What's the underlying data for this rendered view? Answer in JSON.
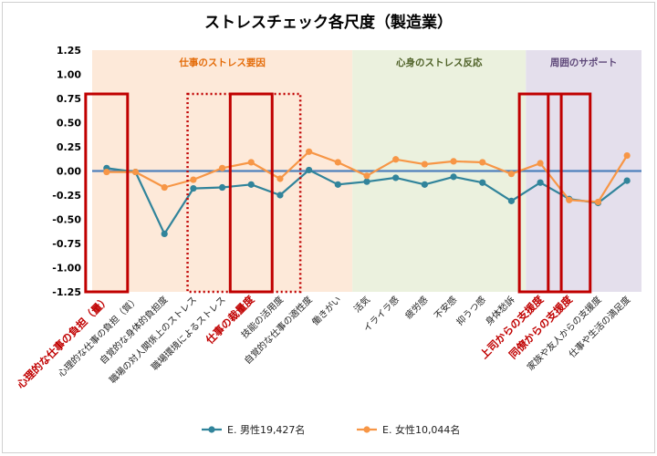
{
  "chart_data": {
    "type": "line",
    "title": "ストレスチェック各尺度（製造業）",
    "ylim": [
      -1.25,
      1.25
    ],
    "yticks": [
      "1.25",
      "1.00",
      "0.75",
      "0.50",
      "0.25",
      "0.00",
      "-0.25",
      "-0.50",
      "-0.75",
      "-1.00",
      "-1.25"
    ],
    "categories": [
      "心理的な仕事の負担（量）",
      "心理的な仕事の負担（質）",
      "自覚的な身体的負担度",
      "職場の対人関係上のストレス",
      "職場環境によるストレス",
      "仕事の裁量度",
      "技能の活用度",
      "自覚的な仕事の適性度",
      "働きがい",
      "活気",
      "イライラ感",
      "疲労感",
      "不安感",
      "抑うつ感",
      "身体愁訴",
      "上司からの支援度",
      "同僚からの支援度",
      "家族や友人からの支援度",
      "仕事や生活の満足度"
    ],
    "highlighted_categories": [
      0,
      5,
      15,
      16
    ],
    "sections": [
      {
        "label": "仕事のストレス要因",
        "from": 0,
        "to": 8,
        "color": "#fde9d9"
      },
      {
        "label": "心身のストレス反応",
        "from": 9,
        "to": 14,
        "color": "#ebf1de"
      },
      {
        "label": "周囲のサポート",
        "from": 15,
        "to": 18,
        "color": "#e4dfec"
      }
    ],
    "series": [
      {
        "name": "E. 男性19,427名",
        "color": "#31849b",
        "values": [
          0.03,
          -0.01,
          -0.65,
          -0.18,
          -0.17,
          -0.14,
          -0.25,
          0.01,
          -0.14,
          -0.11,
          -0.07,
          -0.14,
          -0.06,
          -0.12,
          -0.31,
          -0.12,
          -0.29,
          -0.33,
          -0.1
        ]
      },
      {
        "name": "E. 女性10,044名",
        "color": "#f79646",
        "values": [
          -0.01,
          -0.01,
          -0.17,
          -0.09,
          0.03,
          0.09,
          -0.08,
          0.2,
          0.09,
          -0.05,
          0.12,
          0.07,
          0.1,
          0.09,
          -0.03,
          0.08,
          -0.3,
          -0.32,
          0.16
        ]
      }
    ],
    "grid": false,
    "legend_position": "bottom",
    "zero_line_color": "#4f81bd",
    "highlight_color": "#c00000"
  }
}
